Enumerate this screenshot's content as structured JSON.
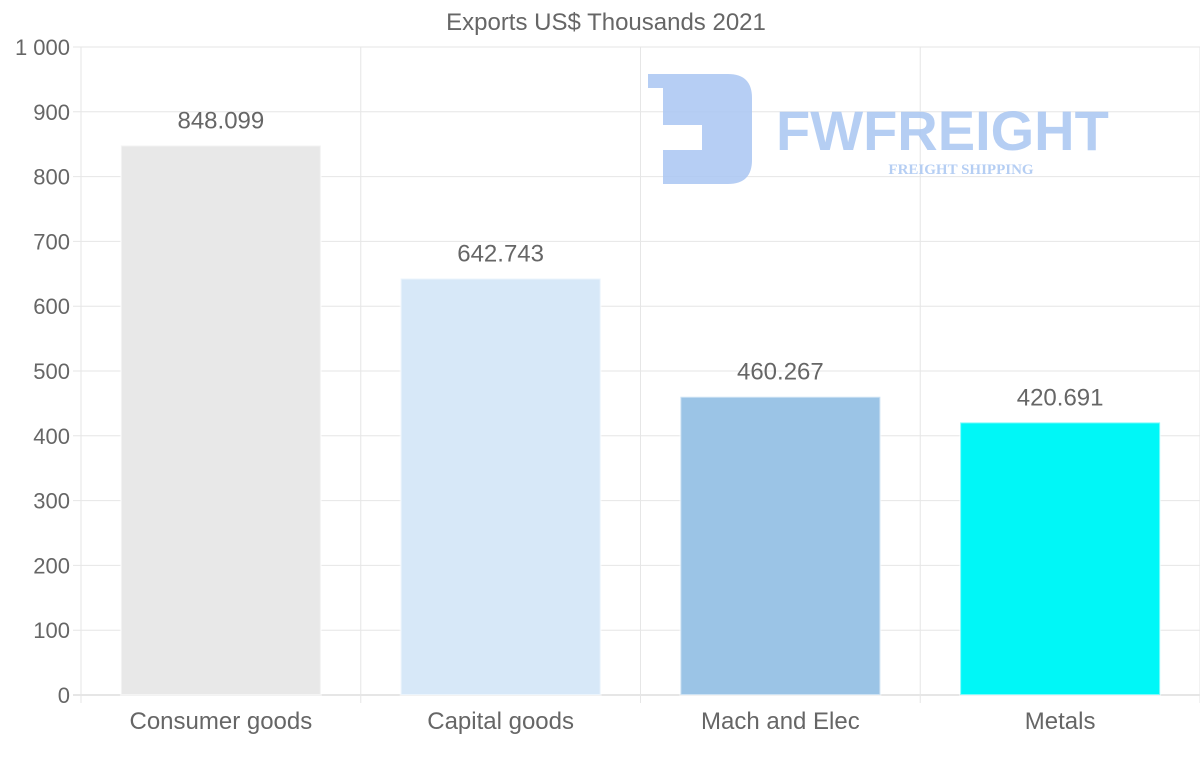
{
  "chart_data": {
    "type": "bar",
    "title": "Exports US$ Thousands 2021",
    "categories": [
      "Consumer goods",
      "Capital goods",
      "Mach and Elec",
      "Metals"
    ],
    "values": [
      848.099,
      642.743,
      460.267,
      420.691
    ],
    "value_labels": [
      "848.099",
      "642.743",
      "460.267",
      "420.691"
    ],
    "colors": [
      "#e8e8e8",
      "#d7e8f8",
      "#9bc4e6",
      "#00f7f7"
    ],
    "xlabel": "",
    "ylabel": "",
    "ylim": [
      0,
      1000
    ],
    "yticks": [
      0,
      100,
      200,
      300,
      400,
      500,
      600,
      700,
      800,
      900,
      1000
    ],
    "ytick_labels": [
      "0",
      "100",
      "200",
      "300",
      "400",
      "500",
      "600",
      "700",
      "800",
      "900",
      "1 000"
    ],
    "grid": true,
    "legend": "none"
  },
  "watermark": {
    "brand": "FWFREIGHT",
    "tagline": "FREIGHT SHIPPING",
    "color": "#a9c6f2"
  }
}
